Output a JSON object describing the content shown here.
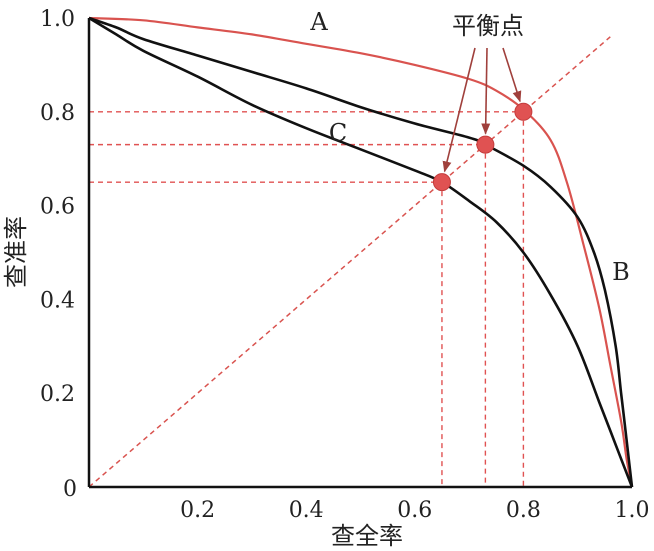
{
  "chart_data": {
    "type": "line",
    "title": "",
    "xlabel": "查全率",
    "ylabel": "查准率",
    "xlim": [
      0,
      1
    ],
    "ylim": [
      0,
      1
    ],
    "grid": false,
    "x_ticks": [
      {
        "value": 0,
        "label": "0"
      },
      {
        "value": 0.2,
        "label": "0.2"
      },
      {
        "value": 0.4,
        "label": "0.4"
      },
      {
        "value": 0.6,
        "label": "0.6"
      },
      {
        "value": 0.8,
        "label": "0.8"
      },
      {
        "value": 1.0,
        "label": "1.0"
      }
    ],
    "y_ticks": [
      {
        "value": 0,
        "label": "0"
      },
      {
        "value": 0.2,
        "label": "0.2"
      },
      {
        "value": 0.4,
        "label": "0.4"
      },
      {
        "value": 0.6,
        "label": "0.6"
      },
      {
        "value": 0.8,
        "label": "0.8"
      },
      {
        "value": 1.0,
        "label": "1.0"
      }
    ],
    "series": [
      {
        "name": "A",
        "color": "#d9534f",
        "points": [
          [
            0,
            1.0
          ],
          [
            0.1,
            0.995
          ],
          [
            0.2,
            0.98
          ],
          [
            0.3,
            0.965
          ],
          [
            0.4,
            0.945
          ],
          [
            0.5,
            0.925
          ],
          [
            0.6,
            0.9
          ],
          [
            0.7,
            0.87
          ],
          [
            0.75,
            0.845
          ],
          [
            0.8,
            0.805
          ],
          [
            0.85,
            0.74
          ],
          [
            0.88,
            0.65
          ],
          [
            0.91,
            0.52
          ],
          [
            0.94,
            0.38
          ],
          [
            0.96,
            0.26
          ],
          [
            0.98,
            0.14
          ],
          [
            0.99,
            0.06
          ],
          [
            1.0,
            0.0
          ]
        ]
      },
      {
        "name": "B",
        "color": "#111111",
        "points": [
          [
            0,
            1.0
          ],
          [
            0.05,
            0.98
          ],
          [
            0.1,
            0.955
          ],
          [
            0.2,
            0.92
          ],
          [
            0.3,
            0.885
          ],
          [
            0.4,
            0.85
          ],
          [
            0.5,
            0.81
          ],
          [
            0.6,
            0.775
          ],
          [
            0.7,
            0.745
          ],
          [
            0.73,
            0.73
          ],
          [
            0.8,
            0.685
          ],
          [
            0.85,
            0.64
          ],
          [
            0.9,
            0.575
          ],
          [
            0.93,
            0.5
          ],
          [
            0.95,
            0.42
          ],
          [
            0.97,
            0.3
          ],
          [
            0.98,
            0.2
          ],
          [
            0.99,
            0.1
          ],
          [
            1.0,
            0.0
          ]
        ]
      },
      {
        "name": "C",
        "color": "#111111",
        "points": [
          [
            0,
            1.0
          ],
          [
            0.05,
            0.965
          ],
          [
            0.1,
            0.93
          ],
          [
            0.2,
            0.875
          ],
          [
            0.3,
            0.815
          ],
          [
            0.4,
            0.765
          ],
          [
            0.5,
            0.72
          ],
          [
            0.6,
            0.675
          ],
          [
            0.65,
            0.65
          ],
          [
            0.7,
            0.61
          ],
          [
            0.75,
            0.565
          ],
          [
            0.8,
            0.5
          ],
          [
            0.85,
            0.41
          ],
          [
            0.9,
            0.3
          ],
          [
            0.94,
            0.18
          ],
          [
            0.97,
            0.09
          ],
          [
            1.0,
            0.0
          ]
        ]
      }
    ],
    "diagonal": {
      "from": [
        0,
        0
      ],
      "to": [
        1,
        1
      ],
      "color": "#d9534f",
      "style": "dashed"
    },
    "break_even_points": [
      {
        "x": 0.65,
        "y": 0.65
      },
      {
        "x": 0.73,
        "y": 0.73
      },
      {
        "x": 0.8,
        "y": 0.8
      }
    ],
    "break_even_color": "#e05252",
    "annotation": {
      "text": "平衡点"
    },
    "curve_labels": [
      {
        "text": "A",
        "x": 0.42,
        "y": 0.995
      },
      {
        "text": "B",
        "x": 1.0,
        "y": 0.45
      },
      {
        "text": "C",
        "x": 0.46,
        "y": 0.755
      }
    ]
  }
}
